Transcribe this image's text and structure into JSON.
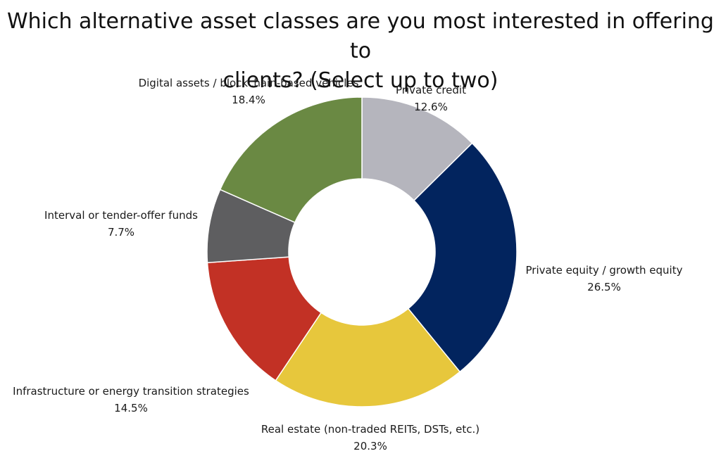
{
  "chart_data": {
    "type": "pie",
    "donut": true,
    "title_lines": [
      "Which alternative asset classes are you most interested in offering to",
      "clients? (Select up to two)"
    ],
    "unit": "%",
    "slices": [
      {
        "label": "Private credit",
        "value": 12.6,
        "value_label": "12.6%",
        "color": "#b5b5bd"
      },
      {
        "label": "Private equity / growth equity",
        "value": 26.5,
        "value_label": "26.5%",
        "color": "#02245e"
      },
      {
        "label": "Real estate (non-traded REITs, DSTs, etc.)",
        "value": 20.3,
        "value_label": "20.3%",
        "color": "#e7c73c"
      },
      {
        "label": "Infrastructure or energy transition strategies",
        "value": 14.5,
        "value_label": "14.5%",
        "color": "#c23125"
      },
      {
        "label": "Interval or tender-offer funds",
        "value": 7.7,
        "value_label": "7.7%",
        "color": "#5e5e60"
      },
      {
        "label": "Digital assets / blockchain-based vehicles",
        "value": 18.4,
        "value_label": "18.4%",
        "color": "#6a8943"
      }
    ]
  }
}
